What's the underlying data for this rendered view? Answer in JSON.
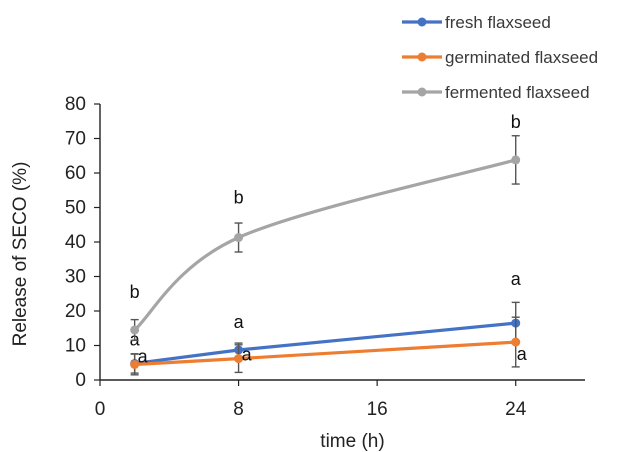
{
  "chart_data": {
    "type": "line",
    "title": "",
    "xlabel": "time (h)",
    "ylabel": "Release of SECO (%)",
    "xlim": [
      0,
      28
    ],
    "ylim": [
      0,
      80
    ],
    "x_ticks": [
      0,
      8,
      16,
      24
    ],
    "y_ticks": [
      0,
      10,
      20,
      30,
      40,
      50,
      60,
      70,
      80
    ],
    "grid": false,
    "legend_position": "top-right",
    "series": [
      {
        "name": "fresh flaxseed",
        "color": "#4472C4",
        "x": [
          2,
          8,
          24
        ],
        "y": [
          4.8,
          8.7,
          16.5
        ],
        "error": [
          2.8,
          2.0,
          6.0
        ],
        "labels": [
          "a",
          "a",
          "a"
        ]
      },
      {
        "name": "germinated flaxseed",
        "color": "#ED7D31",
        "x": [
          2,
          8,
          24
        ],
        "y": [
          4.5,
          6.2,
          11.0
        ],
        "error": [
          3.0,
          4.0,
          7.2
        ],
        "labels": [
          "a",
          "a",
          "a"
        ]
      },
      {
        "name": "fermented flaxseed",
        "color": "#A5A5A5",
        "x": [
          2,
          8,
          24
        ],
        "y": [
          14.5,
          41.3,
          63.8
        ],
        "error": [
          3.0,
          4.2,
          7.0
        ],
        "labels": [
          "b",
          "b",
          "b"
        ]
      }
    ]
  }
}
